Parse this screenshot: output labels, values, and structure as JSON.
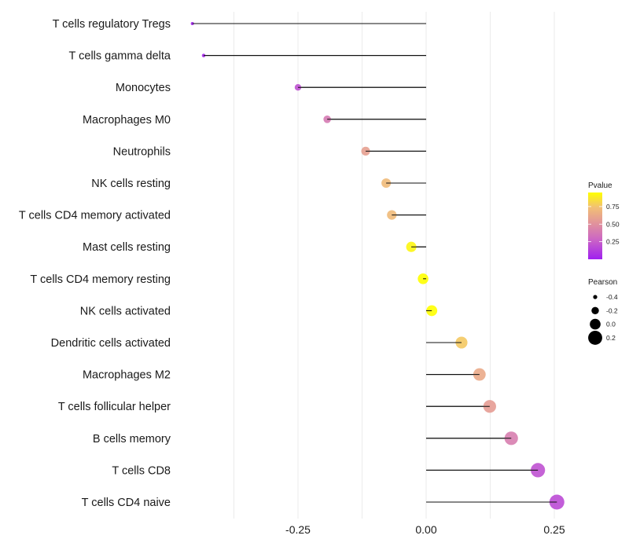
{
  "chart_data": {
    "type": "lollipop",
    "title": "",
    "xlabel": "",
    "ylabel": "",
    "xlim": [
      -0.48,
      0.28
    ],
    "x_ticks": [
      -0.25,
      0.0,
      0.25
    ],
    "x_tick_labels": [
      "-0.25",
      "0.00",
      "0.25"
    ],
    "x_minor_grid": [
      -0.375,
      -0.125,
      0.125
    ],
    "grid": "vertical only",
    "categories": [
      "T cells regulatory  Tregs",
      "T cells gamma delta",
      "Monocytes",
      "Macrophages M0",
      "Neutrophils",
      "NK cells resting",
      "T cells CD4 memory activated",
      "Mast cells resting",
      "T cells CD4 memory resting",
      "NK cells activated",
      "Dendritic cells activated",
      "Macrophages M2",
      "T cells follicular helper",
      "B cells memory",
      "T cells CD8",
      "T cells CD4 naive"
    ],
    "values": [
      -0.456,
      -0.434,
      -0.25,
      -0.193,
      -0.118,
      -0.078,
      -0.067,
      -0.029,
      -0.006,
      0.011,
      0.069,
      0.104,
      0.124,
      0.166,
      0.218,
      0.255
    ],
    "pvalues": [
      0.02,
      0.03,
      0.2,
      0.38,
      0.58,
      0.72,
      0.72,
      0.92,
      0.97,
      0.97,
      0.78,
      0.63,
      0.56,
      0.4,
      0.2,
      0.17
    ],
    "legend": {
      "position": "right",
      "color": {
        "title": "Pvalue",
        "ticks": [
          0.25,
          0.5,
          0.75
        ],
        "tick_labels": [
          "0.25",
          "0.50",
          "0.75"
        ],
        "range": [
          0.0,
          0.95
        ],
        "colors": [
          "#a020f0",
          "#cc66bb",
          "#e39a92",
          "#f2c070",
          "#ffff00"
        ]
      },
      "size": {
        "title": "Pearson",
        "values": [
          -0.4,
          -0.2,
          0.0,
          0.2
        ],
        "labels": [
          "-0.4",
          "-0.2",
          "0.0",
          "0.2"
        ]
      }
    }
  }
}
